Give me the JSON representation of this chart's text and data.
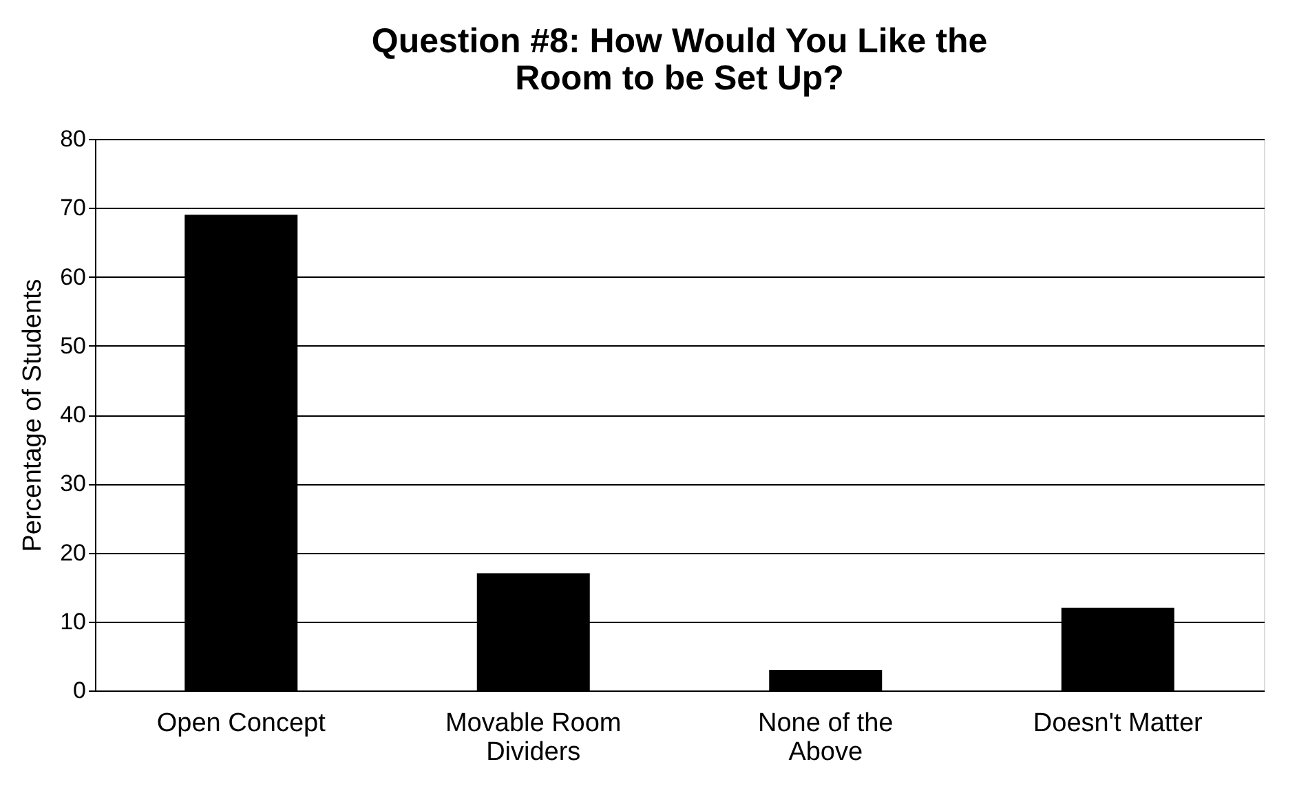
{
  "chart_data": {
    "type": "bar",
    "title": [
      "Question #8: How Would You Like the",
      "Room to be Set Up?"
    ],
    "ylabel": "Percentage of Students",
    "categories": [
      "Open Concept",
      "Movable Room Dividers",
      "None of the Above",
      "Doesn't Matter"
    ],
    "values": [
      69,
      17,
      3,
      12
    ],
    "color": "#000000",
    "ylim": [
      0,
      80
    ],
    "yticks": [
      0,
      10,
      20,
      30,
      40,
      50,
      60,
      70,
      80
    ],
    "grid": "y"
  }
}
